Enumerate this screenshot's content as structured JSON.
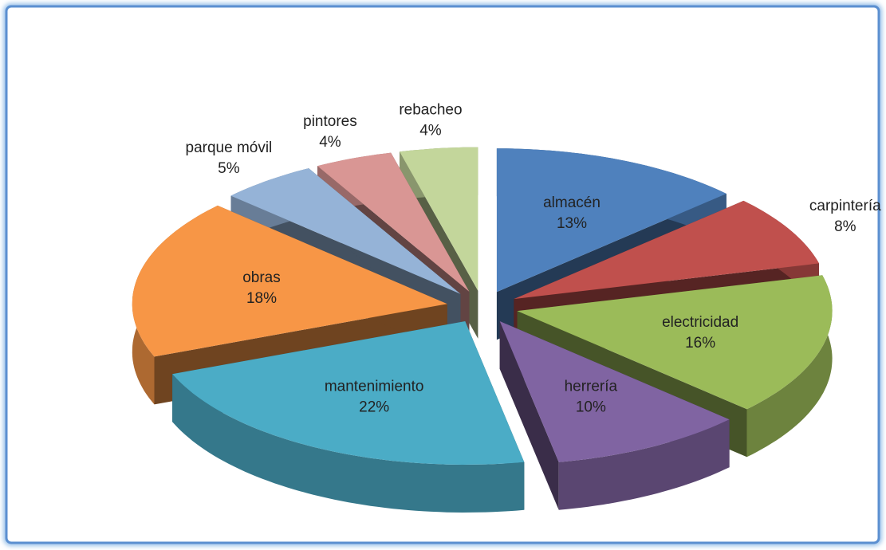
{
  "chart_data": {
    "type": "pie",
    "categories": [
      "almacén",
      "carpintería",
      "electricidad",
      "herrería",
      "mantenimiento",
      "obras",
      "parque móvil",
      "pintores",
      "rebacheo"
    ],
    "values": [
      13,
      8,
      16,
      10,
      22,
      18,
      5,
      4,
      4
    ],
    "value_labels": [
      "13%",
      "8%",
      "16%",
      "10%",
      "22%",
      "18%",
      "5%",
      "4%",
      "4%"
    ],
    "colors": [
      "#4f81bd",
      "#c0504d",
      "#9bbb59",
      "#8064a2",
      "#4bacc6",
      "#f79646",
      "#95b3d7",
      "#d99694",
      "#c3d69b"
    ]
  }
}
